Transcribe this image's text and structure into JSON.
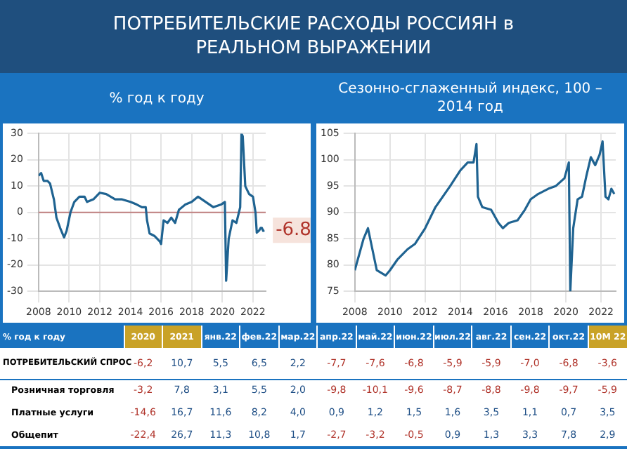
{
  "chart_data": [
    {
      "type": "line",
      "title": "ПОТРЕБИТЕЛЬСКИЕ РАСХОДЫ РОССИЯН в РЕАЛЬНОМ ВЫРАЖЕНИИ",
      "subtitle": "% год к году",
      "series": [
        {
          "color": "#1f6391",
          "x": [
            "2008-01",
            "2008-03",
            "2008-05",
            "2008-08",
            "2008-10",
            "2009-01",
            "2009-03",
            "2009-06",
            "2009-09",
            "2009-11",
            "2010-02",
            "2010-05",
            "2010-09",
            "2011-01",
            "2011-03",
            "2011-08",
            "2012-01",
            "2012-06",
            "2013-01",
            "2013-06",
            "2014-01",
            "2014-06",
            "2014-10",
            "2015-01",
            "2015-02",
            "2015-04",
            "2015-08",
            "2015-12",
            "2016-01",
            "2016-03",
            "2016-06",
            "2016-09",
            "2016-12",
            "2017-03",
            "2017-08",
            "2018-01",
            "2018-06",
            "2018-12",
            "2019-06",
            "2019-12",
            "2020-03",
            "2020-04",
            "2020-06",
            "2020-09",
            "2020-12",
            "2021-03",
            "2021-04",
            "2021-05",
            "2021-07",
            "2021-10",
            "2022-01",
            "2022-03",
            "2022-04",
            "2022-06",
            "2022-07",
            "2022-08",
            "2022-09",
            "2022-10"
          ],
          "values": [
            14,
            15,
            12,
            12,
            11,
            5,
            -2,
            -6,
            -9.5,
            -7,
            0,
            4,
            6,
            6,
            4,
            5,
            7.5,
            7,
            5,
            5,
            4,
            3,
            2,
            2,
            -3,
            -8,
            -9,
            -11,
            -12,
            -3,
            -4,
            -2,
            -4,
            1,
            3,
            4,
            6,
            4,
            2,
            3,
            4,
            -26,
            -10,
            -3,
            -4,
            2,
            30,
            29,
            10,
            7,
            6,
            0,
            -7.7,
            -6.8,
            -5.9,
            -5.9,
            -7,
            -6.8
          ]
        }
      ],
      "xlim": [
        "2008-01",
        "2022-11"
      ],
      "xticks": [
        "2008",
        "2010",
        "2012",
        "2014",
        "2016",
        "2018",
        "2020",
        "2022"
      ],
      "ylim": [
        -30,
        30
      ],
      "yticks": [
        -30,
        -20,
        -10,
        0,
        10,
        20,
        30
      ],
      "grid": true,
      "legend": false,
      "marker": "none",
      "line_style": "solid",
      "ref_lines": [
        {
          "axis": "y",
          "value": 0,
          "color": "#c08080"
        }
      ],
      "annotations": [
        {
          "text": "-6.8",
          "x": "2022-10",
          "y": -6.8
        }
      ]
    },
    {
      "type": "line",
      "subtitle": "Сезонно-сглаженный индекс, 100 – 2014 год",
      "series": [
        {
          "color": "#1f6391",
          "x": [
            "2008-01",
            "2008-03",
            "2008-07",
            "2008-10",
            "2009-01",
            "2009-04",
            "2009-07",
            "2009-10",
            "2010-01",
            "2010-06",
            "2011-01",
            "2011-06",
            "2012-01",
            "2012-08",
            "2013-01",
            "2013-06",
            "2014-01",
            "2014-06",
            "2014-10",
            "2014-12",
            "2015-01",
            "2015-04",
            "2015-10",
            "2016-03",
            "2016-06",
            "2016-10",
            "2017-04",
            "2017-09",
            "2018-01",
            "2018-06",
            "2019-01",
            "2019-06",
            "2019-12",
            "2020-03",
            "2020-04",
            "2020-06",
            "2020-09",
            "2020-12",
            "2021-03",
            "2021-06",
            "2021-09",
            "2021-12",
            "2022-02",
            "2022-04",
            "2022-06",
            "2022-08",
            "2022-10"
          ],
          "values": [
            79,
            81,
            85,
            87,
            83,
            79,
            78.5,
            78,
            79,
            81,
            83,
            84,
            87,
            91,
            93,
            95,
            98,
            99.5,
            99.5,
            103,
            93,
            91,
            90.5,
            88,
            87,
            88,
            88.5,
            90.5,
            92.5,
            93.5,
            94.5,
            95,
            96.5,
            99.5,
            75,
            87,
            92.5,
            93,
            97,
            100.5,
            99,
            101,
            103.5,
            93,
            92.5,
            94.5,
            93.5
          ]
        }
      ],
      "xlim": [
        "2008-01",
        "2022-11"
      ],
      "xticks": [
        "2008",
        "2010",
        "2012",
        "2014",
        "2016",
        "2018",
        "2020",
        "2022"
      ],
      "ylim": [
        75,
        105
      ],
      "yticks": [
        75,
        80,
        85,
        90,
        95,
        100,
        105
      ],
      "grid": true,
      "legend": false,
      "marker": "none",
      "line_style": "solid"
    },
    {
      "type": "other",
      "title": "% год к году",
      "categories": [
        "2020",
        "2021",
        "янв.22",
        "фев.22",
        "мар.22",
        "апр.22",
        "май.22",
        "июн.22",
        "июл.22",
        "авг.22",
        "сен.22",
        "окт.22",
        "10М 22"
      ],
      "y_categories": [
        "ПОТРЕБИТЕЛЬСКИЙ СПРОС",
        "Розничная торговля",
        "Платные услуги",
        "Общепит"
      ],
      "cell_labels": [
        [
          "-6,2",
          "10,7",
          "5,5",
          "6,5",
          "2,2",
          "-7,7",
          "-7,6",
          "-6,8",
          "-5,9",
          "-5,9",
          "-7,0",
          "-6,8",
          "-3,6"
        ],
        [
          "-3,2",
          "7,8",
          "3,1",
          "5,5",
          "2,0",
          "-9,8",
          "-10,1",
          "-9,6",
          "-8,7",
          "-8,8",
          "-9,8",
          "-9,7",
          "-5,9"
        ],
        [
          "-14,6",
          "16,7",
          "11,6",
          "8,2",
          "4,0",
          "0,9",
          "1,2",
          "1,5",
          "1,6",
          "3,5",
          "1,1",
          "0,7",
          "3,5"
        ],
        [
          "-22,4",
          "26,7",
          "11,3",
          "10,8",
          "1,7",
          "-2,7",
          "-3,2",
          "-0,5",
          "0,9",
          "1,3",
          "3,3",
          "7,8",
          "2,9"
        ]
      ]
    }
  ]
}
